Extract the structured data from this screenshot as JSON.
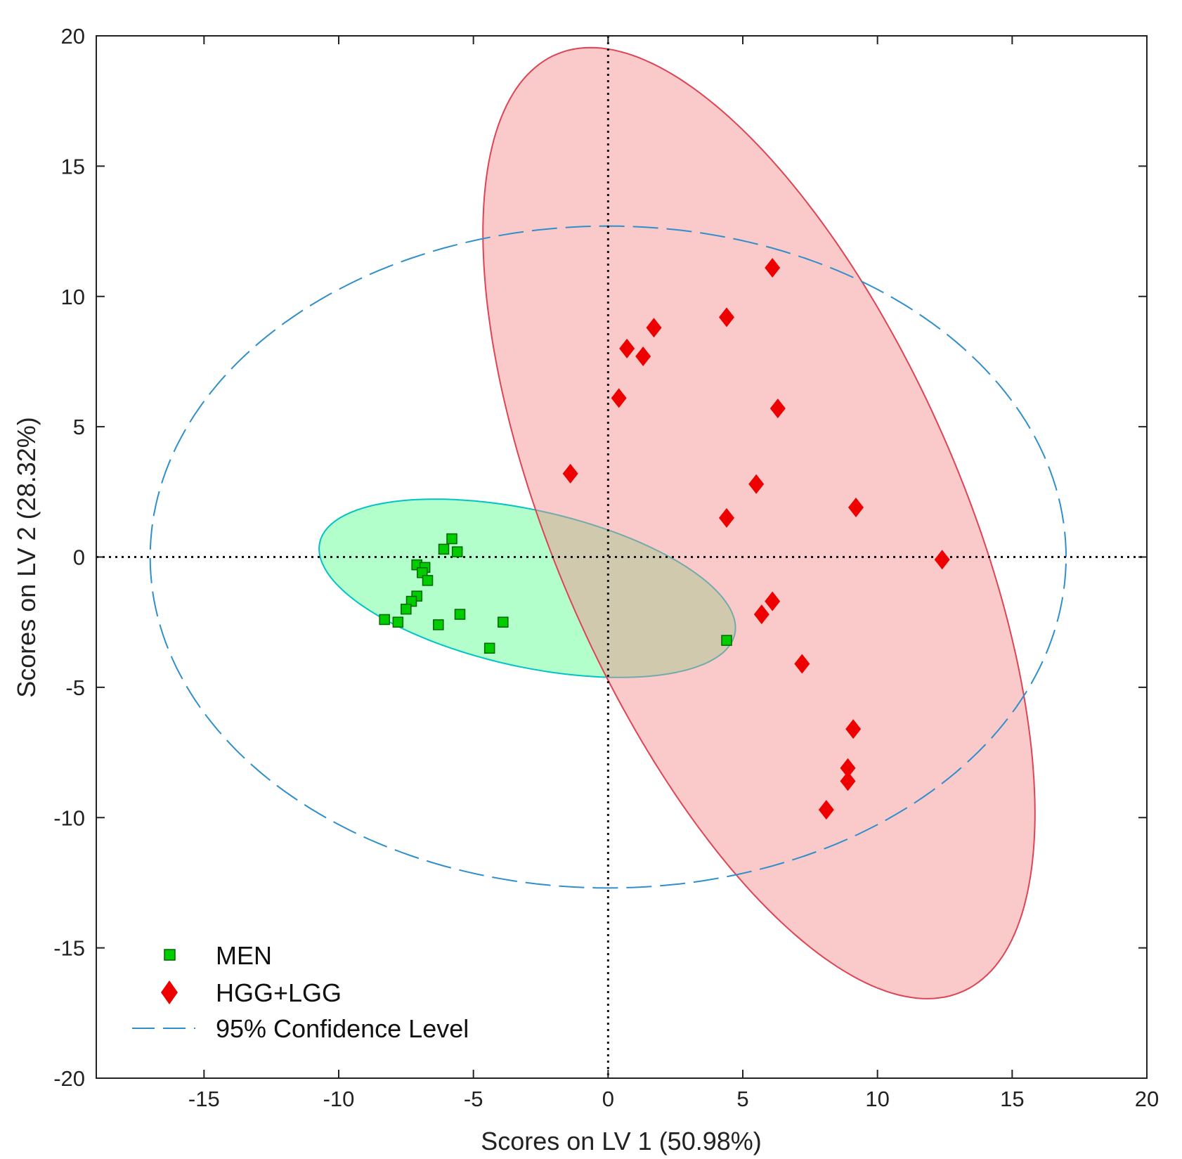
{
  "chart_data": {
    "type": "scatter",
    "title": "",
    "xlabel": "Scores on LV 1 (50.98%)",
    "ylabel": "Scores on LV 2 (28.32%)",
    "xlim": [
      -19,
      20
    ],
    "ylim": [
      -20,
      20
    ],
    "xticks": [
      -15,
      -10,
      -5,
      0,
      5,
      10,
      15,
      20
    ],
    "yticks": [
      -20,
      -15,
      -10,
      -5,
      0,
      5,
      10,
      15,
      20
    ],
    "grid": false,
    "legend_position": "bottom-left",
    "reference_lines": {
      "x": 0,
      "y": 0,
      "style": "dotted"
    },
    "series": [
      {
        "name": "MEN",
        "marker": "square",
        "color": "#00cc00",
        "edge_color": "#006600",
        "points": [
          [
            -5.8,
            0.7
          ],
          [
            -6.1,
            0.3
          ],
          [
            -5.6,
            0.2
          ],
          [
            -7.1,
            -0.3
          ],
          [
            -6.8,
            -0.4
          ],
          [
            -6.9,
            -0.6
          ],
          [
            -6.7,
            -0.9
          ],
          [
            -7.1,
            -1.5
          ],
          [
            -7.3,
            -1.7
          ],
          [
            -7.5,
            -2.0
          ],
          [
            -8.3,
            -2.4
          ],
          [
            -7.8,
            -2.5
          ],
          [
            -6.3,
            -2.6
          ],
          [
            -5.5,
            -2.2
          ],
          [
            -3.9,
            -2.5
          ],
          [
            -4.4,
            -3.5
          ],
          [
            4.4,
            -3.2
          ]
        ]
      },
      {
        "name": "HGG+LGG",
        "marker": "diamond",
        "color": "#ee0000",
        "edge_color": "#ee0000",
        "points": [
          [
            6.1,
            11.1
          ],
          [
            4.4,
            9.2
          ],
          [
            1.7,
            8.8
          ],
          [
            0.7,
            8.0
          ],
          [
            1.3,
            7.7
          ],
          [
            0.4,
            6.1
          ],
          [
            6.3,
            5.7
          ],
          [
            -1.4,
            3.2
          ],
          [
            5.5,
            2.8
          ],
          [
            9.2,
            1.9
          ],
          [
            4.4,
            1.5
          ],
          [
            12.4,
            -0.1
          ],
          [
            6.1,
            -1.7
          ],
          [
            5.7,
            -2.2
          ],
          [
            7.2,
            -4.1
          ],
          [
            9.1,
            -6.6
          ],
          [
            8.9,
            -8.1
          ],
          [
            8.9,
            -8.6
          ],
          [
            8.1,
            -9.7
          ]
        ]
      }
    ],
    "ellipses": [
      {
        "name": "MEN",
        "center": [
          -3.0,
          -1.2
        ],
        "semi_axes": [
          7.9,
          3.0
        ],
        "angle_deg": -13,
        "fill": "#66ff99",
        "fill_opacity": 0.5,
        "stroke": "#00c4c4"
      },
      {
        "name": "HGG+LGG",
        "center": [
          5.6,
          1.3
        ],
        "semi_axes": [
          19.5,
          7.6
        ],
        "angle_deg": -67.5,
        "fill": "#f48c8c",
        "fill_opacity": 0.47,
        "stroke": "#dd4455"
      },
      {
        "name": "95% Confidence Level",
        "center": [
          0.0,
          0.0
        ],
        "semi_axes": [
          17.0,
          12.7
        ],
        "angle_deg": 0,
        "fill": "none",
        "stroke": "#2f8fcc",
        "dashed": true
      }
    ],
    "legend": [
      {
        "label": "MEN",
        "marker": "square",
        "color": "#00cc00"
      },
      {
        "label": "HGG+LGG",
        "marker": "diamond",
        "color": "#ee0000"
      },
      {
        "label": "95% Confidence Level",
        "marker": "dashed-line",
        "color": "#2f8fcc"
      }
    ]
  }
}
